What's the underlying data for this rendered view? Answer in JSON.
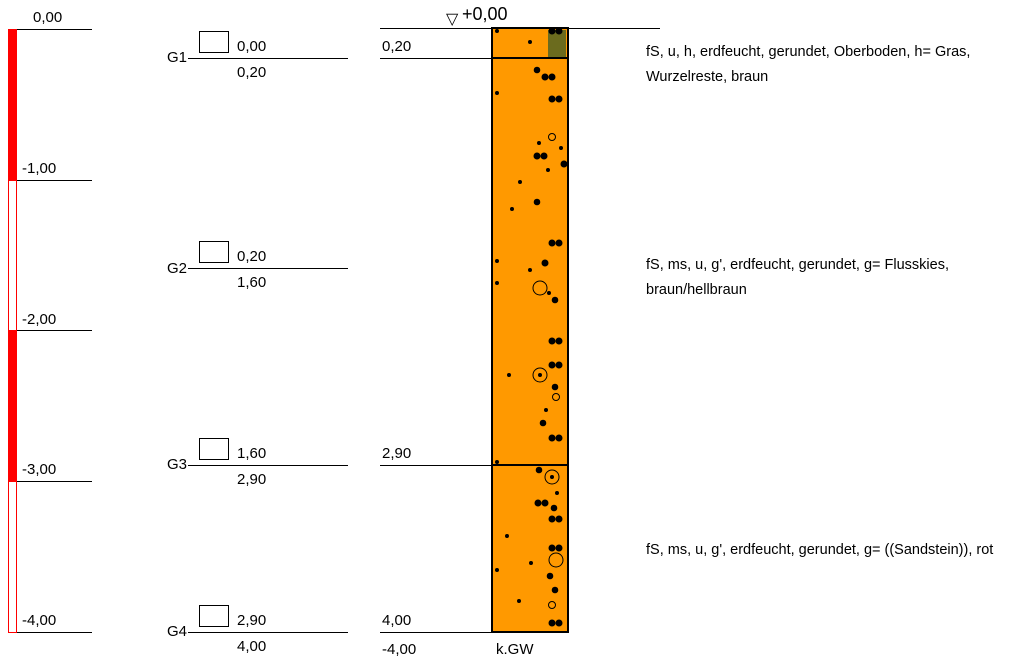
{
  "depth_scale": {
    "labels": [
      "0,00",
      "-1,00",
      "-2,00",
      "-3,00",
      "-4,00"
    ],
    "fill_color": "#ff0000"
  },
  "samples": [
    {
      "id": "G1",
      "top": "0,00",
      "bottom": "0,20"
    },
    {
      "id": "G2",
      "top": "0,20",
      "bottom": "1,60"
    },
    {
      "id": "G3",
      "top": "1,60",
      "bottom": "2,90"
    },
    {
      "id": "G4",
      "top": "2,90",
      "bottom": "4,00"
    }
  ],
  "ground_level": {
    "symbol": "▽",
    "label": "+0,00"
  },
  "layer_boundaries": [
    "0,20",
    "2,90",
    "4,00"
  ],
  "final_depth": "-4,00",
  "groundwater": "k.GW",
  "layers": [
    {
      "description": "fS, u, h, erdfeucht, gerundet, Oberboden, h= Gras, Wurzelreste, braun"
    },
    {
      "description": "fS, ms, u, g', erdfeucht, gerundet, g= Flusskies, braun/hellbraun"
    },
    {
      "description": "fS, ms, u, g', erdfeucht, gerundet, g= ((Sandstein)), rot"
    }
  ],
  "colors": {
    "soil_fill": "#ff9900",
    "topsoil_patch": "#6b6b1e",
    "symbols": "#000000"
  }
}
